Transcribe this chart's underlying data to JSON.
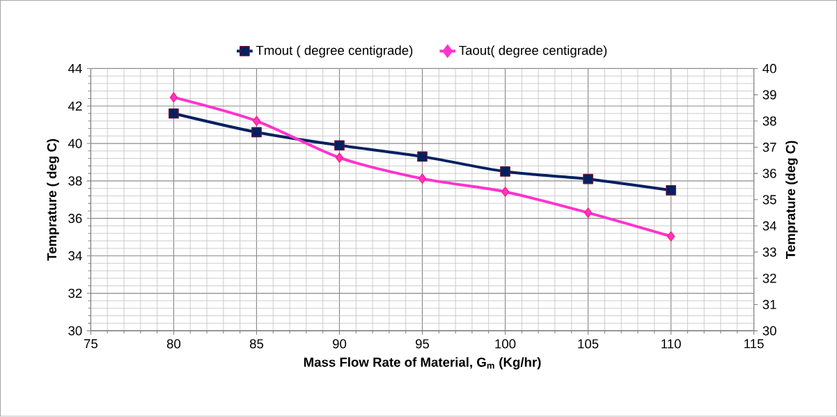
{
  "chart_data": {
    "type": "line",
    "xlabel": "Mass Flow Rate of Material, G$_{m}$ (Kg/hr)",
    "ylabel": "Temprature ( deg C)",
    "y2label": "Temprature (deg C)",
    "x": [
      80,
      85,
      90,
      95,
      100,
      105,
      110
    ],
    "series": [
      {
        "name": "Tmout ( degree centigrade)",
        "color": "#002060",
        "marker": "square",
        "values": [
          41.6,
          40.6,
          39.9,
          39.3,
          38.5,
          38.1,
          37.5
        ]
      },
      {
        "name": "Taout( degree centigrade)",
        "color": "#ff33cc",
        "marker": "diamond",
        "axis": "y2",
        "values": [
          38.9,
          38.0,
          36.6,
          35.8,
          35.3,
          34.5,
          33.6
        ]
      }
    ],
    "xlim": [
      75,
      115
    ],
    "xticks": [
      75,
      80,
      85,
      90,
      95,
      100,
      105,
      110,
      115
    ],
    "ylim": [
      30,
      44
    ],
    "yticks": [
      30,
      32,
      34,
      36,
      38,
      40,
      42,
      44
    ],
    "y2lim": [
      30,
      40
    ],
    "y2ticks": [
      30,
      31,
      32,
      33,
      34,
      35,
      36,
      37,
      38,
      39,
      40
    ],
    "grid": true,
    "legend": "top",
    "line_style": "solid"
  }
}
